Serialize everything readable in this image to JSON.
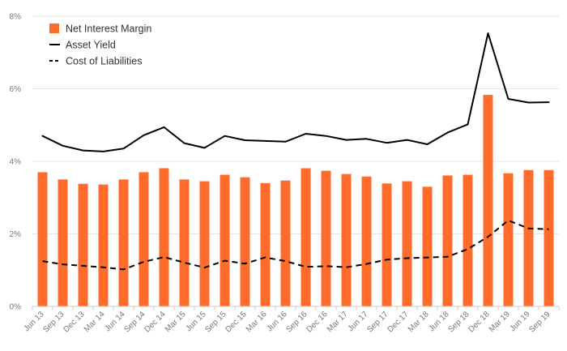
{
  "chart_data": {
    "type": "bar",
    "categories": [
      "Jun 13",
      "Sep 13",
      "Dec 13",
      "Mar 14",
      "Jun 14",
      "Sep 14",
      "Dec 14",
      "Mar 15",
      "Jun 15",
      "Sep 15",
      "Dec 15",
      "Mar 16",
      "Jun 16",
      "Sep 16",
      "Dec 16",
      "Mar 17",
      "Jun 17",
      "Sep 17",
      "Dec 17",
      "Mar 18",
      "Jun 18",
      "Sep 18",
      "Dec 18",
      "Mar 19",
      "Jun 19",
      "Sep 19"
    ],
    "series": [
      {
        "name": "Net Interest Margin",
        "type": "bar",
        "color": "#FF6B2B",
        "values": [
          3.7,
          3.5,
          3.38,
          3.36,
          3.5,
          3.7,
          3.81,
          3.5,
          3.45,
          3.63,
          3.56,
          3.4,
          3.47,
          3.81,
          3.74,
          3.65,
          3.58,
          3.39,
          3.45,
          3.3,
          3.61,
          3.63,
          5.83,
          3.67,
          3.76,
          3.76
        ]
      },
      {
        "name": "Asset Yield",
        "type": "line",
        "style": "solid",
        "color": "#000000",
        "values": [
          4.7,
          4.43,
          4.3,
          4.27,
          4.35,
          4.72,
          4.94,
          4.5,
          4.37,
          4.7,
          4.58,
          4.56,
          4.54,
          4.76,
          4.7,
          4.59,
          4.62,
          4.51,
          4.59,
          4.47,
          4.79,
          5.02,
          7.53,
          5.72,
          5.62,
          5.63
        ]
      },
      {
        "name": "Cost of Liabilities",
        "type": "line",
        "style": "dashed",
        "color": "#000000",
        "values": [
          1.25,
          1.16,
          1.12,
          1.08,
          1.02,
          1.23,
          1.36,
          1.21,
          1.07,
          1.26,
          1.18,
          1.35,
          1.25,
          1.09,
          1.11,
          1.08,
          1.17,
          1.29,
          1.33,
          1.35,
          1.37,
          1.58,
          1.92,
          2.37,
          2.15,
          2.13
        ]
      }
    ],
    "ylim": [
      0,
      8
    ],
    "yticks": [
      0,
      2,
      4,
      6,
      8
    ],
    "ytick_labels": [
      "0%",
      "2%",
      "4%",
      "6%",
      "8%"
    ],
    "grid": true,
    "legend": "top-left",
    "title": "",
    "xlabel": "",
    "ylabel": ""
  }
}
